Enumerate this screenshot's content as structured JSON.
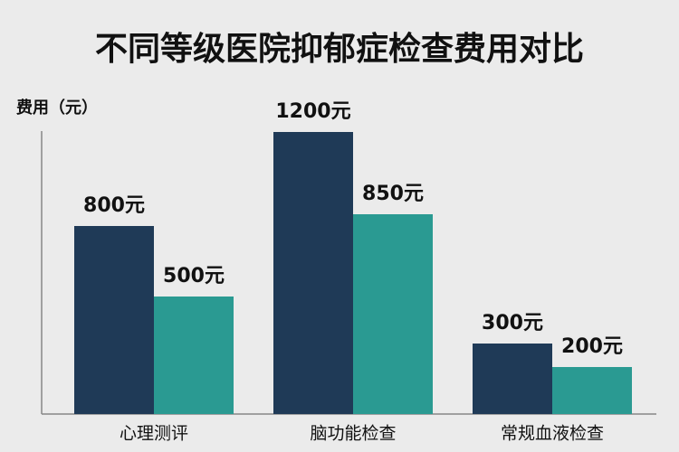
{
  "chart_data": {
    "type": "bar",
    "title": "不同等级医院抑郁症检查费用对比",
    "y_label": "费用（元）",
    "categories": [
      "心理测评",
      "脑功能检查",
      "常规血液检查"
    ],
    "series": [
      {
        "color": "#1f3a57",
        "values": [
          800,
          1200,
          300
        ],
        "value_labels": [
          "800元",
          "1200元",
          "300元"
        ]
      },
      {
        "color": "#2a9a92",
        "values": [
          500,
          850,
          200
        ],
        "value_labels": [
          "500元",
          "850元",
          "200元"
        ]
      }
    ],
    "ylim": [
      0,
      1300
    ]
  }
}
